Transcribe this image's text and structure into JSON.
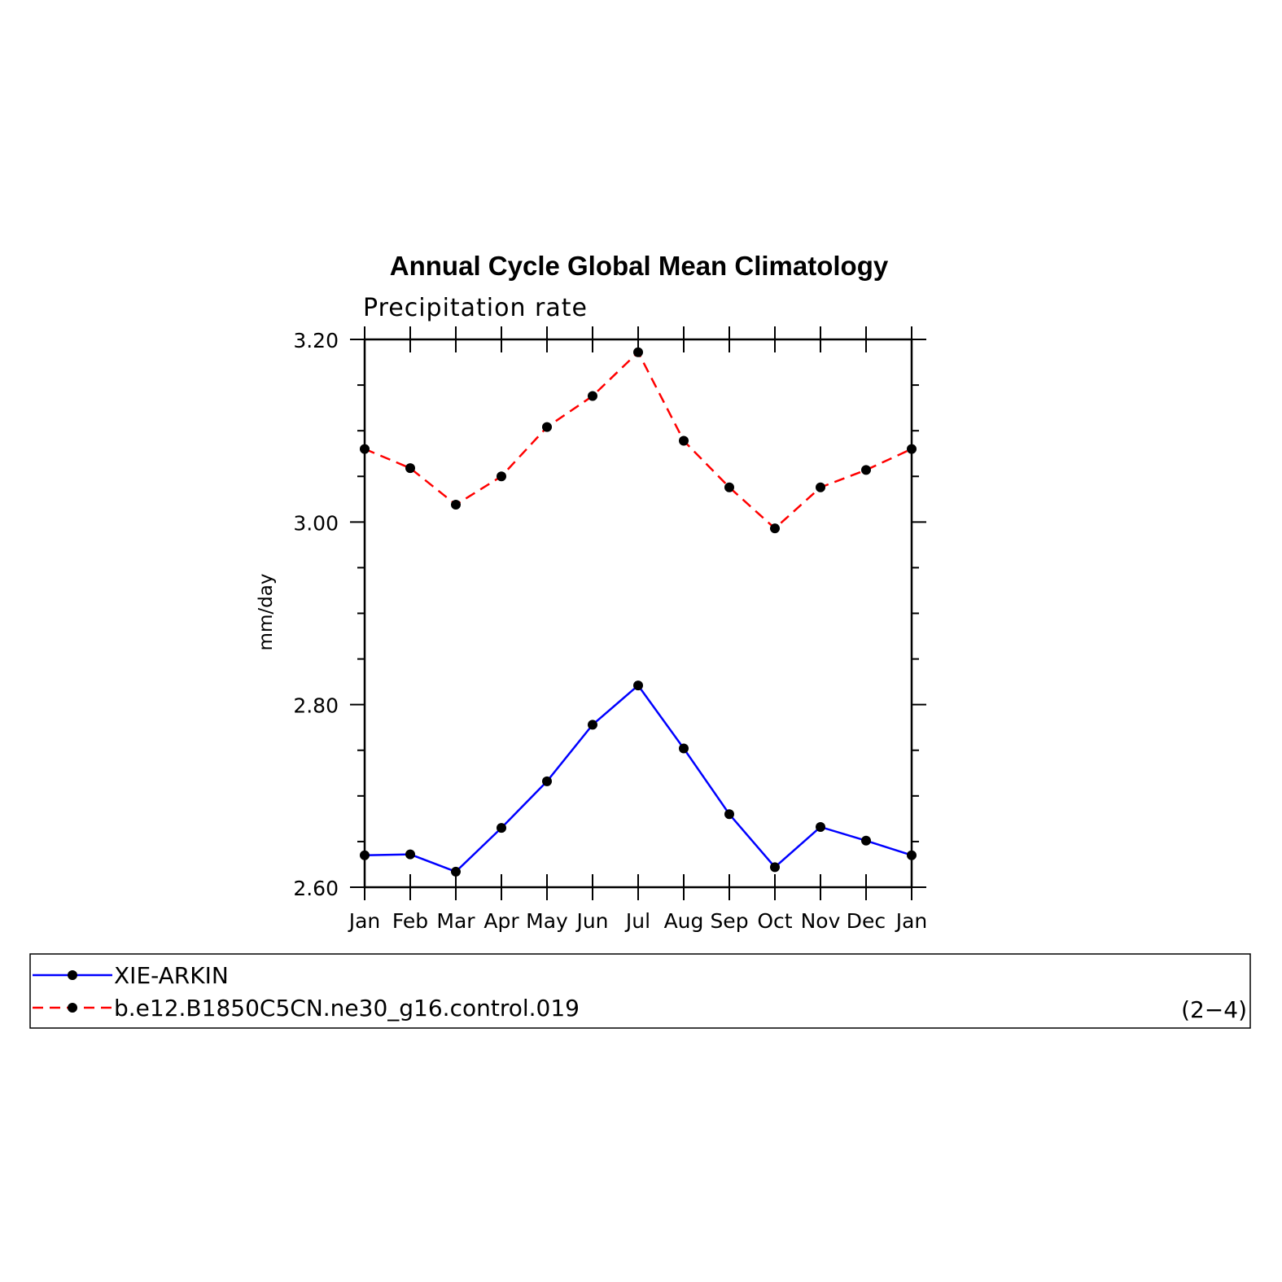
{
  "chart_data": {
    "type": "line",
    "title": "Annual Cycle Global Mean Climatology",
    "subtitle": "Precipitation rate",
    "ylabel": "mm/day",
    "xlabel": "",
    "categories": [
      "Jan",
      "Feb",
      "Mar",
      "Apr",
      "May",
      "Jun",
      "Jul",
      "Aug",
      "Sep",
      "Oct",
      "Nov",
      "Dec",
      "Jan"
    ],
    "ylim": [
      2.6,
      3.2
    ],
    "yticks": [
      2.6,
      2.8,
      3.0,
      3.2
    ],
    "ytick_labels": [
      "2.60",
      "2.80",
      "3.00",
      "3.20"
    ],
    "y_minor_step": 0.05,
    "grid": false,
    "legend_position": "bottom",
    "series": [
      {
        "name": "XIE-ARKIN",
        "color": "#0000ff",
        "line_style": "solid",
        "marker": "filled-circle",
        "values": [
          2.635,
          2.636,
          2.617,
          2.665,
          2.716,
          2.778,
          2.821,
          2.752,
          2.68,
          2.622,
          2.666,
          2.651,
          2.635
        ]
      },
      {
        "name": "b.e12.B1850C5CN.ne30_g16.control.019",
        "color": "#ff0000",
        "line_style": "dashed",
        "marker": "filled-circle",
        "values": [
          3.08,
          3.059,
          3.019,
          3.05,
          3.104,
          3.138,
          3.186,
          3.089,
          3.038,
          2.993,
          3.038,
          3.057,
          3.08
        ]
      }
    ],
    "panel_label": "(2−4)"
  }
}
